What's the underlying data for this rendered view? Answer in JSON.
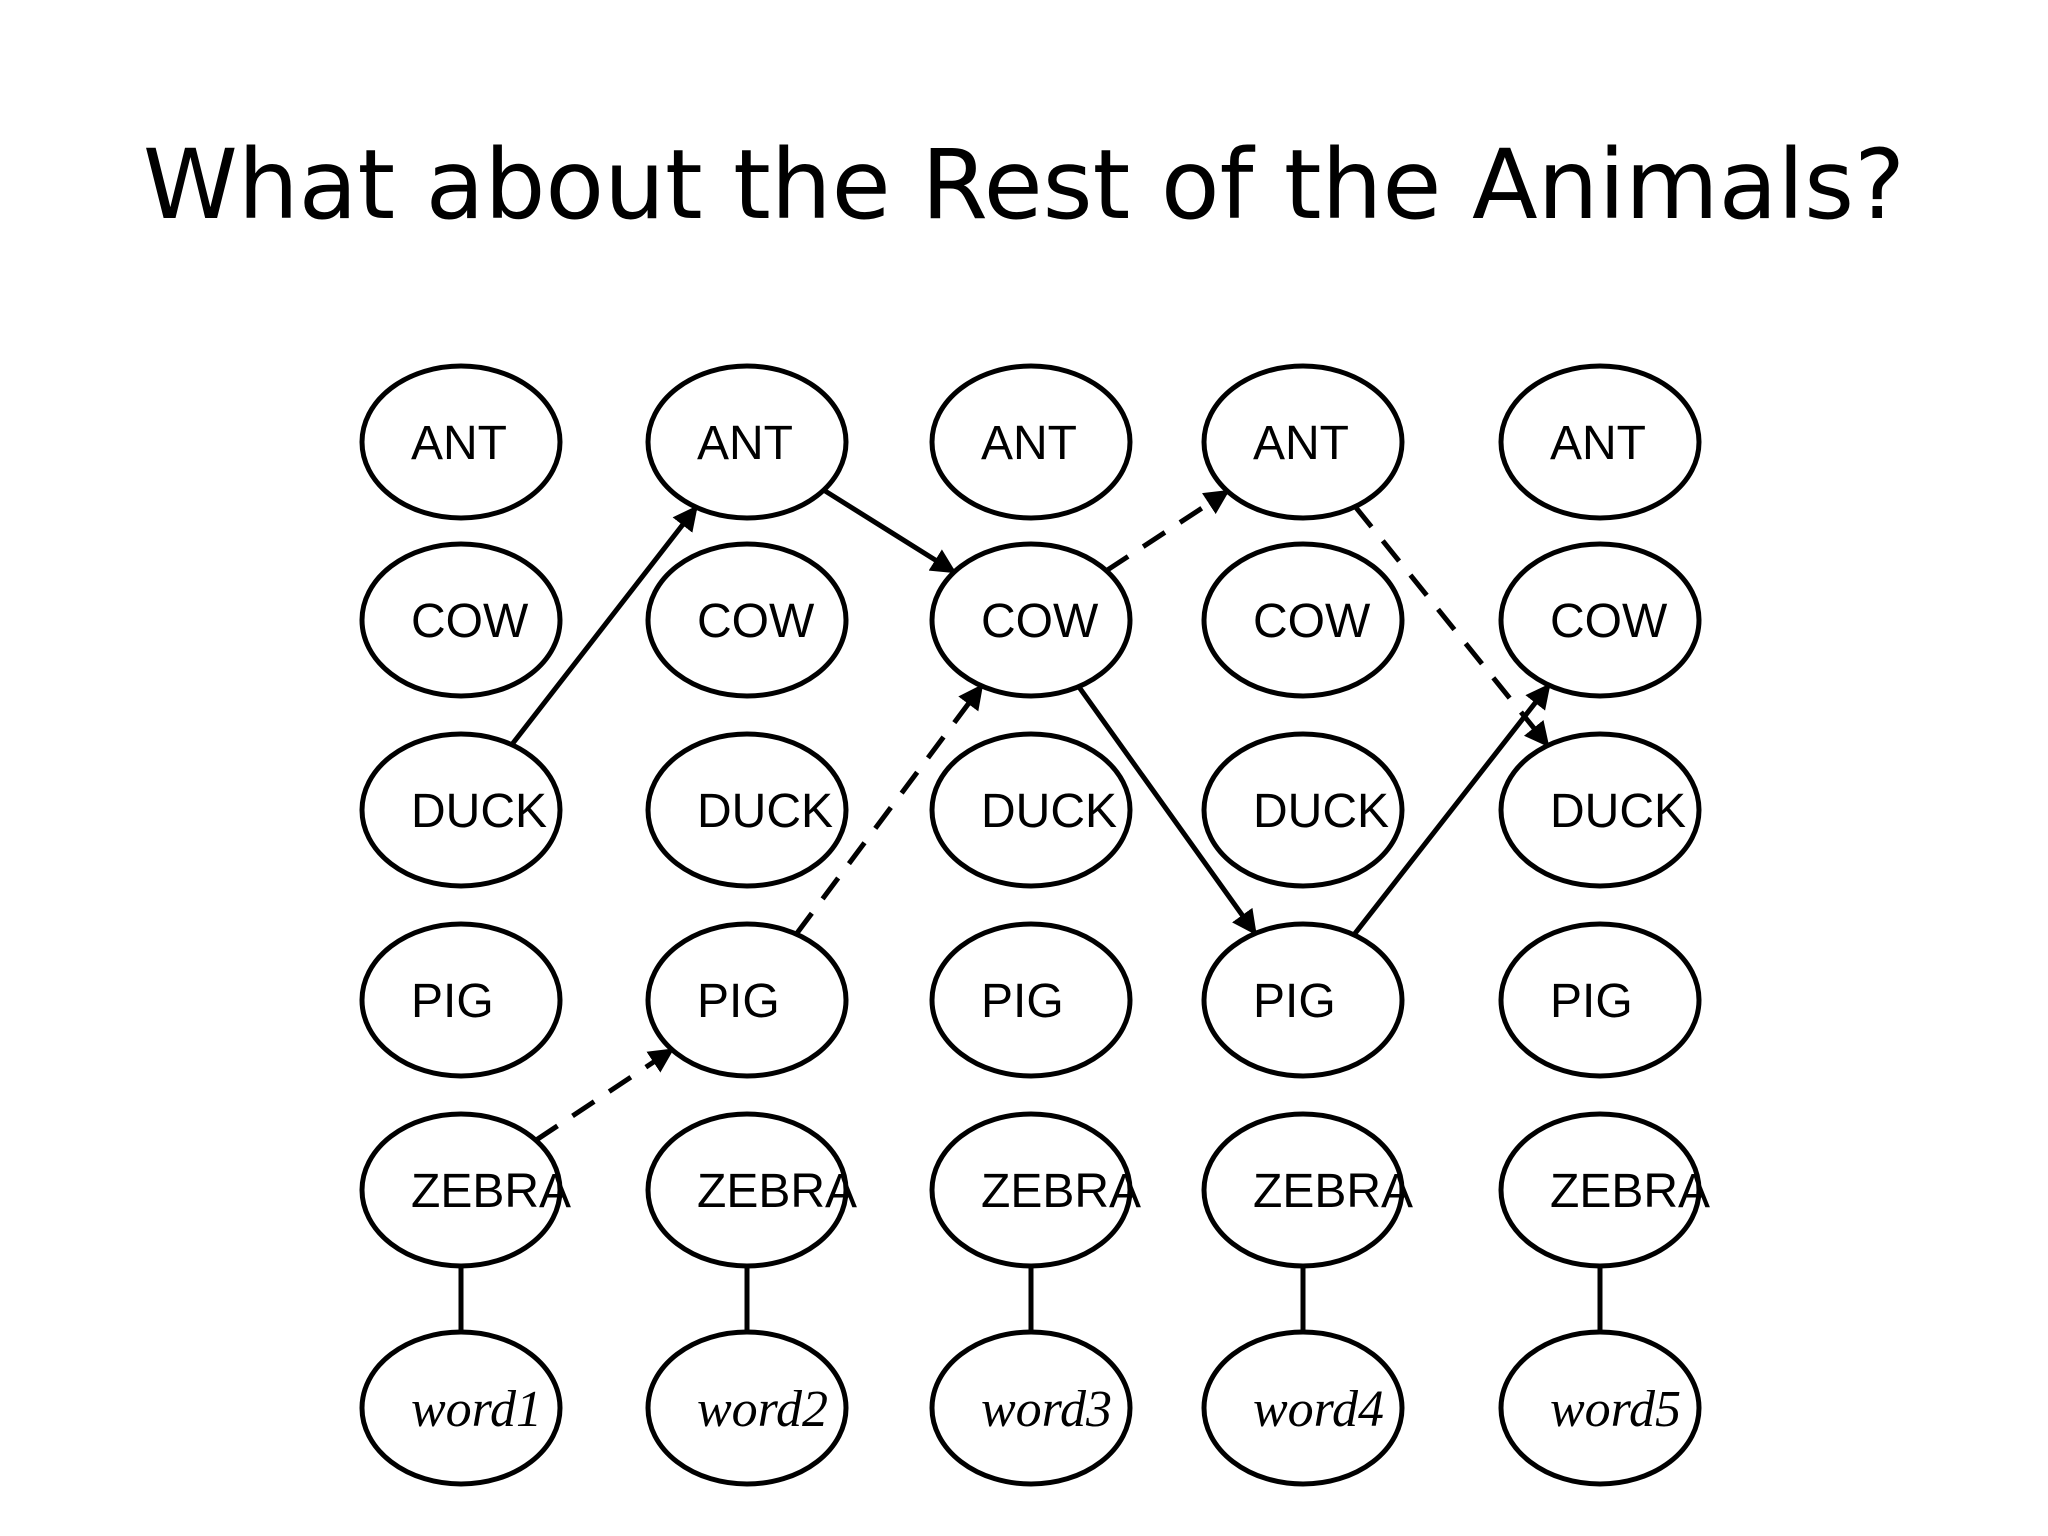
{
  "title": "What about the Rest of the Animals?",
  "states": [
    "ANT",
    "COW",
    "DUCK",
    "PIG",
    "ZEBRA"
  ],
  "words": [
    "word1",
    "word2",
    "word3",
    "word4",
    "word5"
  ],
  "paths": [
    {
      "style": "solid",
      "sequence": [
        "DUCK",
        "ANT",
        "COW",
        "PIG",
        "COW"
      ]
    },
    {
      "style": "dashed",
      "sequence": [
        "ZEBRA",
        "PIG",
        "COW",
        "ANT",
        "DUCK"
      ]
    }
  ],
  "colors": {
    "stroke": "#000000",
    "fill": "#ffffff",
    "background": "#ffffff"
  }
}
